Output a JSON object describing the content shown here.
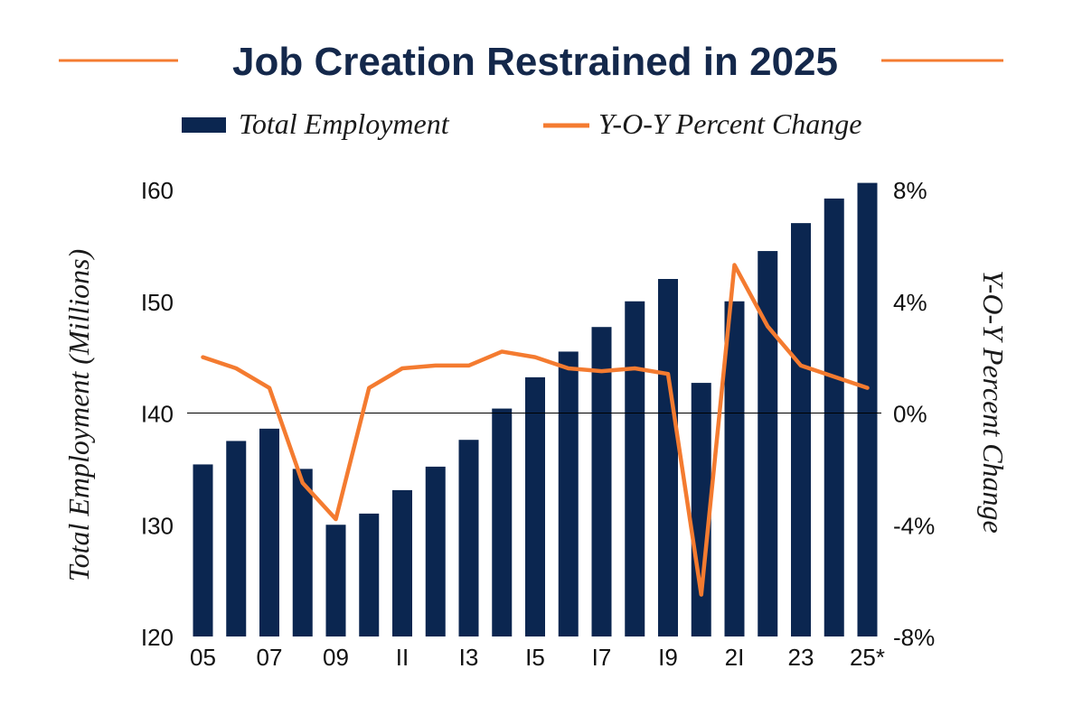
{
  "colors": {
    "bar": "#0b2650",
    "line": "#f47b30",
    "title": "#14284b",
    "text": "#111111"
  },
  "chart_data": {
    "type": "bar+line",
    "title": "Job Creation Restrained in 2025",
    "legend": {
      "bar_label": "Total Employment",
      "line_label": "Y-O-Y Percent Change",
      "placement": "top-center"
    },
    "ylabel_left": "Total Employment (Millions)",
    "ylabel_right": "Y-O-Y Percent Change",
    "ylim_left": [
      120,
      160
    ],
    "ylim_right": [
      -8,
      8
    ],
    "left_ticks": [
      "I20",
      "I30",
      "I40",
      "I50",
      "I60"
    ],
    "right_ticks": [
      "-8%",
      "-4%",
      "0%",
      "4%",
      "8%"
    ],
    "x_tick_labels": [
      "05",
      "07",
      "09",
      "II",
      "I3",
      "I5",
      "I7",
      "I9",
      "2I",
      "23",
      "25*"
    ],
    "years": [
      "2005",
      "2006",
      "2007",
      "2008",
      "2009",
      "2010",
      "2011",
      "2012",
      "2013",
      "2014",
      "2015",
      "2016",
      "2017",
      "2018",
      "2019",
      "2020",
      "2021",
      "2022",
      "2023",
      "2024",
      "2025"
    ],
    "series": [
      {
        "name": "Total Employment",
        "type": "bar",
        "axis": "left",
        "values": [
          135.4,
          137.5,
          138.6,
          135.0,
          130.0,
          131.0,
          133.1,
          135.2,
          137.6,
          140.4,
          143.2,
          145.5,
          147.7,
          150.0,
          152.0,
          142.7,
          150.0,
          154.5,
          157.0,
          159.2,
          160.6
        ]
      },
      {
        "name": "Y-O-Y Percent Change",
        "type": "line",
        "axis": "right",
        "values": [
          2.0,
          1.6,
          0.9,
          -2.5,
          -3.8,
          0.9,
          1.6,
          1.7,
          1.7,
          2.2,
          2.0,
          1.6,
          1.5,
          1.6,
          1.4,
          -6.5,
          5.3,
          3.1,
          1.7,
          1.3,
          0.9
        ]
      }
    ],
    "zero_line": true,
    "grid": false
  }
}
